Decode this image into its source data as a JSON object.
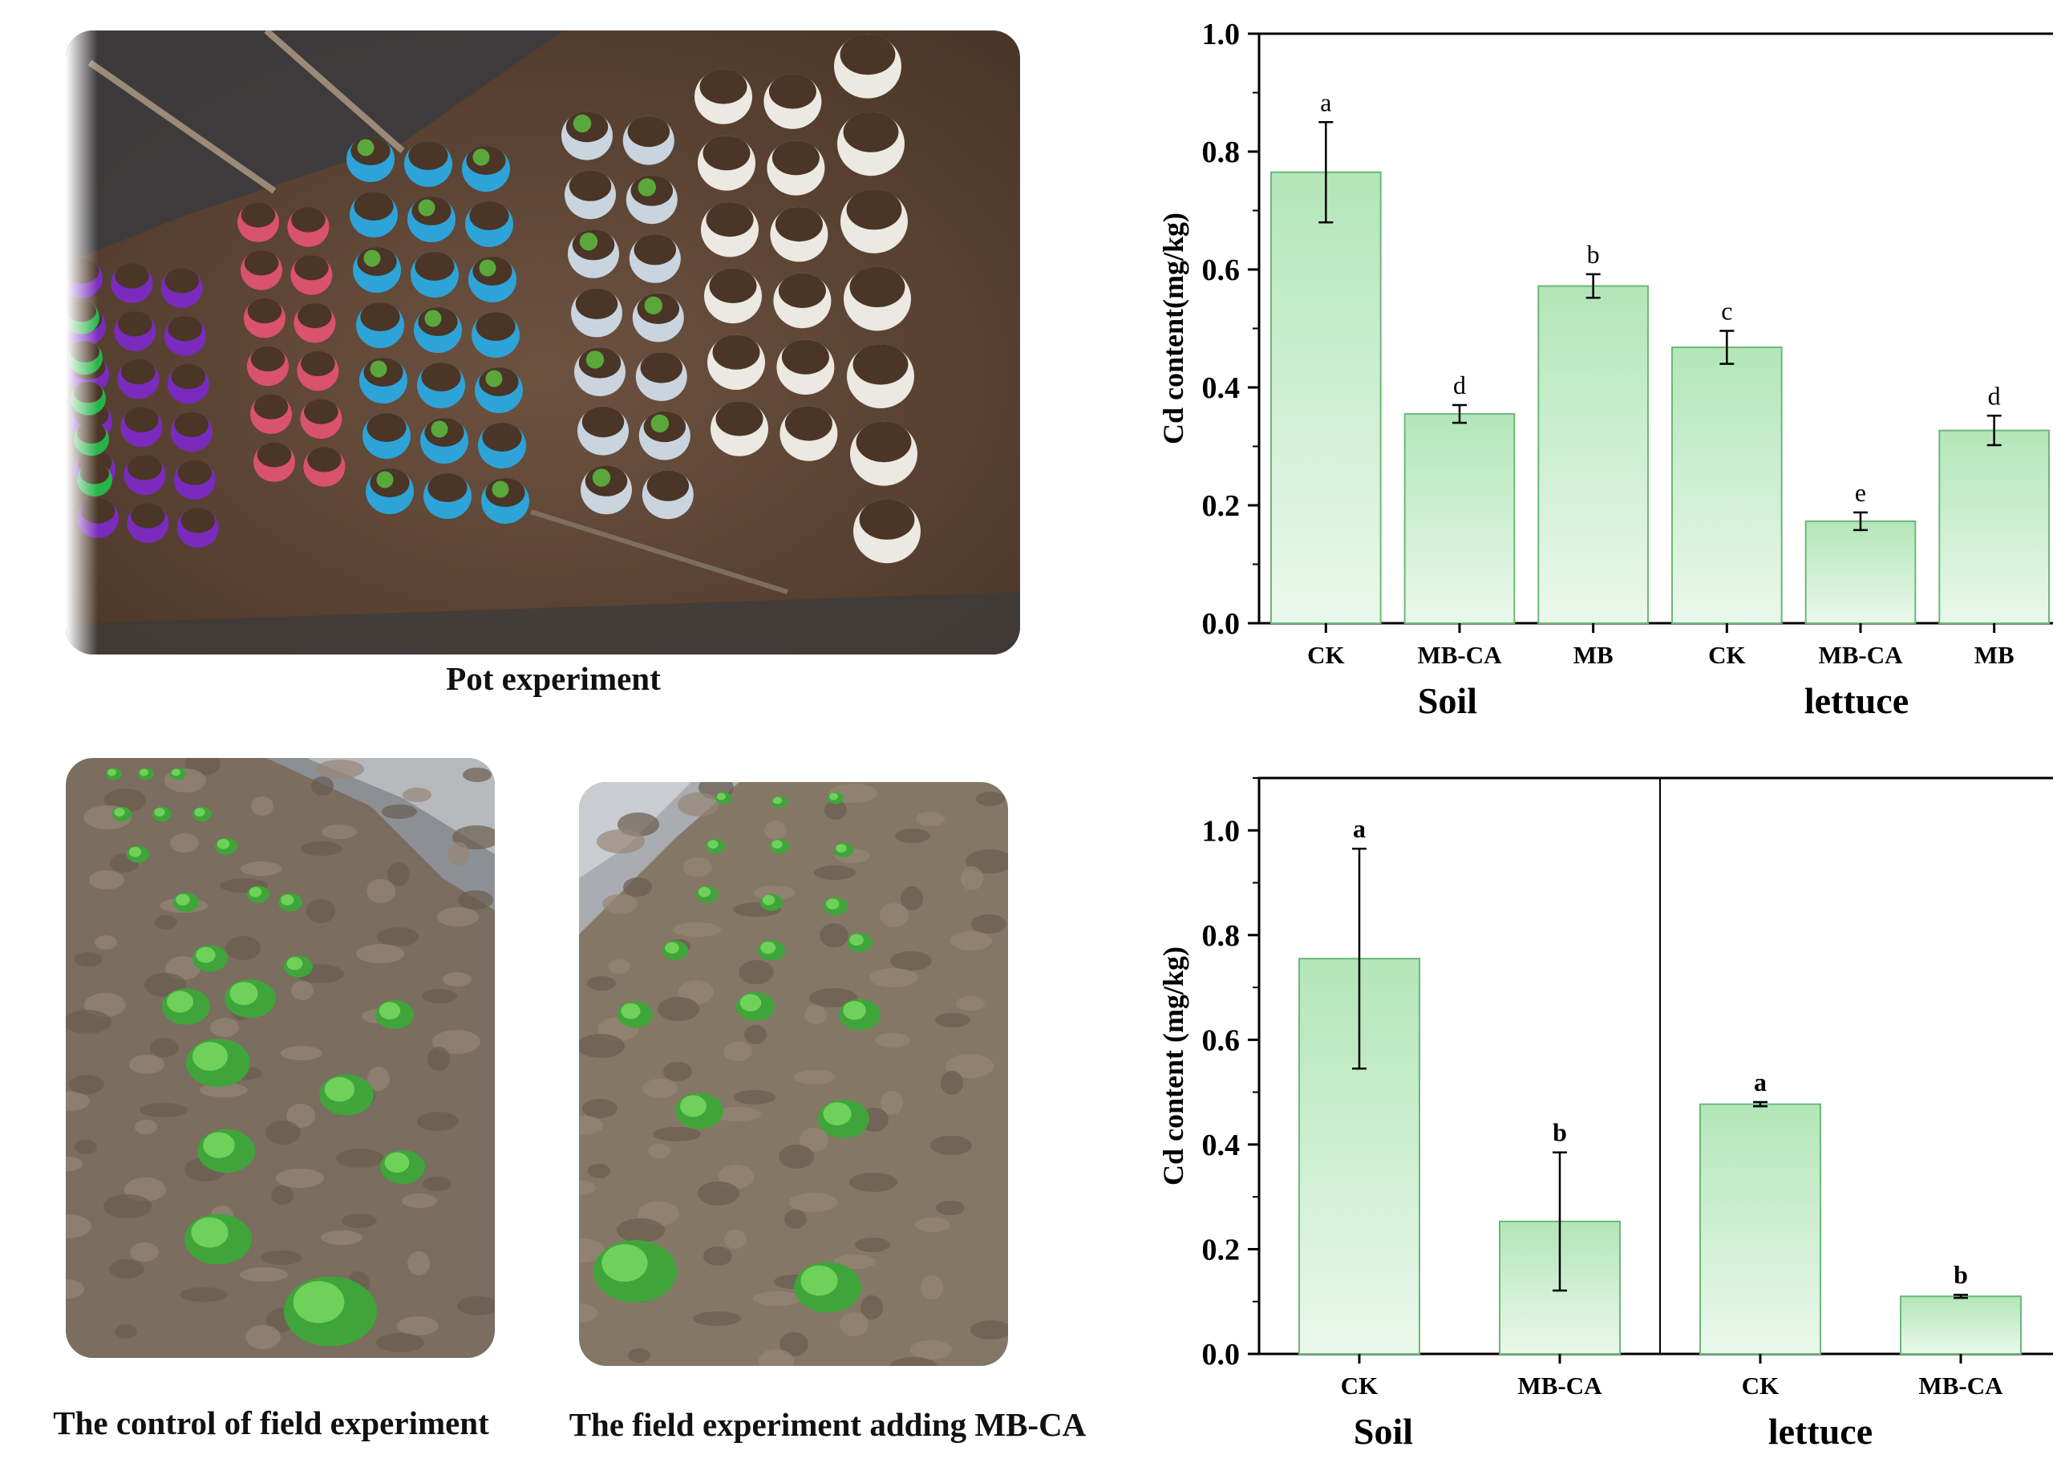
{
  "figure": {
    "captions": {
      "pot": "Pot experiment",
      "field_control": "The control of field experiment",
      "field_mbca": "The field experiment adding MB-CA"
    }
  },
  "photos": {
    "pot": {
      "name": "pot-experiment-photo",
      "pot_colors": [
        "#7a2bbd",
        "#27b348",
        "#d9526e",
        "#2ea3d8",
        "#c9d4df",
        "#ece8e2"
      ]
    },
    "field_control": {
      "name": "field-control-photo"
    },
    "field_mbca": {
      "name": "field-mbca-photo"
    }
  },
  "colors": {
    "bar_top": "#b3e6b8",
    "bar_bottom": "#eaf8ec",
    "bar_stroke": "#6bb877",
    "axis": "#000000"
  },
  "chart_data": [
    {
      "type": "bar",
      "title": "",
      "ylabel": "Cd content(mg/kg)",
      "xlabel": "",
      "ylim": [
        0,
        1.0
      ],
      "yticks": [
        "0.0",
        "0.2",
        "0.4",
        "0.6",
        "0.8",
        "1.0"
      ],
      "categories": [
        "CK",
        "MB-CA",
        "MB",
        "CK",
        "MB-CA",
        "MB"
      ],
      "groups": [
        "Soil",
        "lettuce"
      ],
      "values": [
        0.765,
        0.355,
        0.572,
        0.468,
        0.173,
        0.327
      ],
      "errors": [
        0.085,
        0.015,
        0.02,
        0.028,
        0.015,
        0.025
      ],
      "letters": [
        "a",
        "d",
        "b",
        "c",
        "e",
        "d"
      ]
    },
    {
      "type": "bar",
      "title": "",
      "ylabel": "Cd content (mg/kg)",
      "xlabel": "",
      "ylim": [
        0,
        1.1
      ],
      "yticks": [
        "0.0",
        "0.2",
        "0.4",
        "0.6",
        "0.8",
        "1.0"
      ],
      "categories": [
        "CK",
        "MB-CA",
        "CK",
        "MB-CA"
      ],
      "groups": [
        "Soil",
        "lettuce"
      ],
      "values": [
        0.755,
        0.253,
        0.477,
        0.11
      ],
      "errors": [
        0.21,
        0.132,
        0.004,
        0.003
      ],
      "letters": [
        "a",
        "b",
        "a",
        "b"
      ]
    }
  ]
}
